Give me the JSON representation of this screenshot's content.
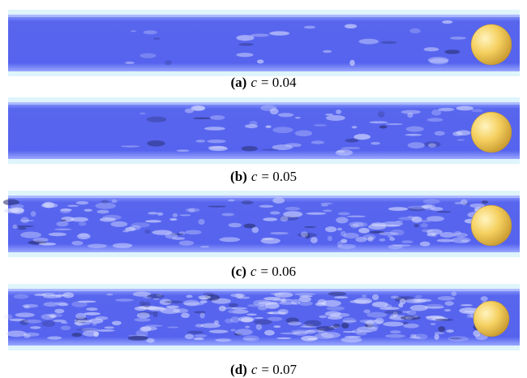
{
  "panels": [
    {
      "label": "(a)",
      "var": "c",
      "rest": "= 0.04"
    },
    {
      "label": "(b)",
      "var": "c",
      "rest": "= 0.05"
    },
    {
      "label": "(c)",
      "var": "c",
      "rest": "= 0.06"
    },
    {
      "label": "(d)",
      "var": "c",
      "rest": "= 0.07"
    }
  ]
}
